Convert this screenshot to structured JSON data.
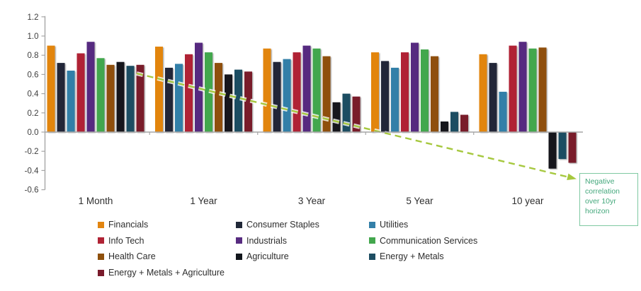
{
  "chart_data": {
    "type": "bar",
    "title": "",
    "categories": [
      "1 Month",
      "1 Year",
      "3 Year",
      "5 Year",
      "10 year"
    ],
    "series": [
      {
        "name": "Financials",
        "color": "#E28510",
        "values": [
          0.9,
          0.89,
          0.87,
          0.83,
          0.81
        ]
      },
      {
        "name": "Consumer Staples",
        "color": "#212838",
        "values": [
          0.72,
          0.67,
          0.73,
          0.74,
          0.72
        ]
      },
      {
        "name": "Utilities",
        "color": "#337FA8",
        "values": [
          0.64,
          0.71,
          0.76,
          0.67,
          0.42
        ]
      },
      {
        "name": "Info Tech",
        "color": "#B02335",
        "values": [
          0.82,
          0.81,
          0.83,
          0.83,
          0.9
        ]
      },
      {
        "name": "Industrials",
        "color": "#572B80",
        "values": [
          0.94,
          0.93,
          0.9,
          0.93,
          0.94
        ]
      },
      {
        "name": "Communication Services",
        "color": "#43A74D",
        "values": [
          0.77,
          0.83,
          0.87,
          0.86,
          0.87
        ]
      },
      {
        "name": "Health Care",
        "color": "#8F500C",
        "values": [
          0.7,
          0.72,
          0.79,
          0.79,
          0.88
        ]
      },
      {
        "name": "Agriculture",
        "color": "#12161C",
        "values": [
          0.73,
          0.6,
          0.31,
          0.11,
          -0.38
        ]
      },
      {
        "name": "Energy + Metals",
        "color": "#1D4D62",
        "values": [
          0.69,
          0.65,
          0.4,
          0.21,
          -0.28
        ]
      },
      {
        "name": "Energy + Metals + Agriculture",
        "color": "#791A2B",
        "values": [
          0.7,
          0.63,
          0.37,
          0.18,
          -0.32
        ]
      }
    ],
    "ylim": [
      -0.6,
      1.2
    ],
    "ytick_step": 0.2,
    "ytick_labels": [
      "1.2",
      "1.0",
      "0.8",
      "0.6",
      "0.4",
      "0.2",
      "0.0",
      "-0.2",
      "-0.4",
      "-0.6"
    ],
    "xlabel": "",
    "ylabel": "",
    "grid": false,
    "legend_position": "bottom",
    "legend": {
      "columns": [
        [
          "Financials",
          "Info Tech",
          "Health Care",
          "Energy + Metals + Agriculture"
        ],
        [
          "Consumer Staples",
          "Industrials",
          "Agriculture"
        ],
        [
          "Utilities",
          "Communication Services",
          "Energy + Metals"
        ]
      ]
    },
    "annotation": {
      "text": "Negative correlation over 10yr horizon",
      "text_color": "#44A87C",
      "border_color": "#7FC9A2"
    },
    "arrow": {
      "style": "dashed",
      "color": "#A6C83E",
      "description": "dashed arrow from ~0.6 at 1 Month down to annotation box at 10 year"
    },
    "axis_color": "#A6A6A6",
    "tick_label_color": "#3D3D3D"
  }
}
